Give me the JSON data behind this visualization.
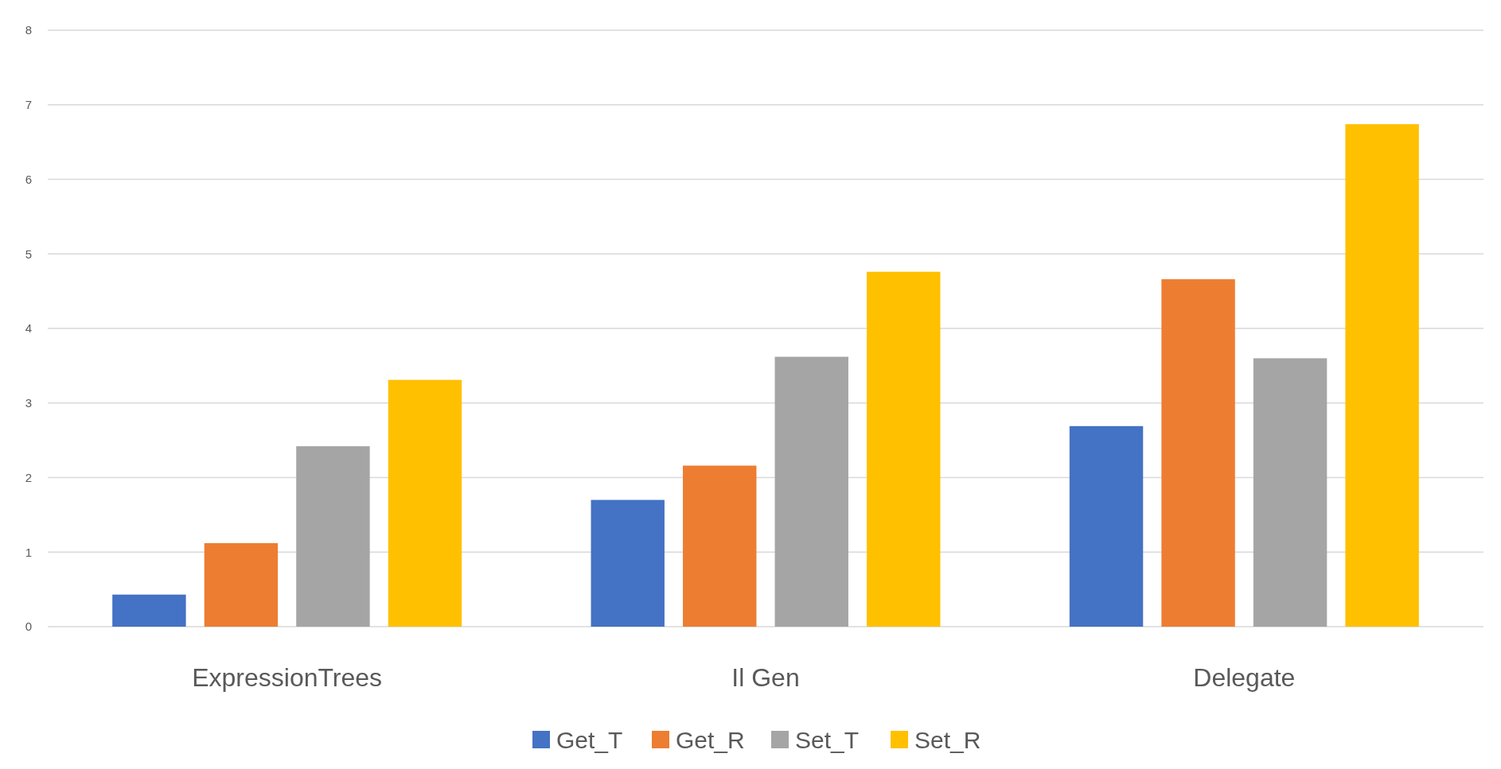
{
  "chart_data": {
    "type": "bar",
    "categories": [
      "ExpressionTrees",
      "Il Gen",
      "Delegate"
    ],
    "series": [
      {
        "name": "Get_T",
        "color": "#4472c4",
        "values": [
          0.43,
          1.7,
          2.69
        ]
      },
      {
        "name": "Get_R",
        "color": "#ed7d31",
        "values": [
          1.12,
          2.16,
          4.66
        ]
      },
      {
        "name": "Set_T",
        "color": "#a5a5a5",
        "values": [
          2.42,
          3.62,
          3.6
        ]
      },
      {
        "name": "Set_R",
        "color": "#ffc000",
        "values": [
          3.31,
          4.76,
          6.74
        ]
      }
    ],
    "ylim": [
      0,
      8
    ],
    "yticks": [
      0,
      1,
      2,
      3,
      4,
      5,
      6,
      7,
      8
    ],
    "grid": "y",
    "legend": "bottom"
  }
}
